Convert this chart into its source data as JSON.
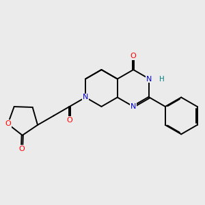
{
  "background_color": "#ebebeb",
  "figsize": [
    3.0,
    3.0
  ],
  "dpi": 100,
  "atom_colors": {
    "O": "#ff0000",
    "N": "#0000cc",
    "H": "#008080",
    "C": "#000000"
  },
  "bond_color": "#000000",
  "line_width": 1.4
}
